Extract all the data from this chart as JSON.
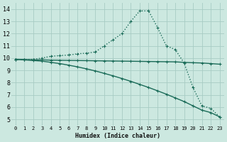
{
  "xlabel": "Humidex (Indice chaleur)",
  "bg_color": "#cce8e0",
  "grid_color": "#a8ccc4",
  "line_color": "#1a6b58",
  "xlim": [
    -0.5,
    23.5
  ],
  "ylim": [
    4.5,
    14.5
  ],
  "xticks": [
    0,
    1,
    2,
    3,
    4,
    5,
    6,
    7,
    8,
    9,
    10,
    11,
    12,
    13,
    14,
    15,
    16,
    17,
    18,
    19,
    20,
    21,
    22,
    23
  ],
  "yticks": [
    5,
    6,
    7,
    8,
    9,
    10,
    11,
    12,
    13,
    14
  ],
  "line1_x": [
    0,
    1,
    2,
    3,
    4,
    5,
    6,
    7,
    8,
    9,
    10,
    11,
    12,
    13,
    14,
    15,
    16,
    17,
    18,
    19,
    20,
    21,
    22,
    23
  ],
  "line1_y": [
    9.9,
    9.85,
    9.9,
    10.0,
    10.15,
    10.2,
    10.25,
    10.35,
    10.4,
    10.5,
    11.0,
    11.5,
    12.0,
    13.0,
    13.85,
    13.85,
    12.5,
    11.0,
    10.7,
    9.6,
    7.6,
    6.1,
    5.9,
    5.2
  ],
  "line2_x": [
    0,
    1,
    2,
    3,
    4,
    5,
    6,
    7,
    8,
    9,
    10,
    11,
    12,
    13,
    14,
    15,
    16,
    17,
    18,
    19,
    20,
    21,
    22,
    23
  ],
  "line2_y": [
    9.9,
    9.88,
    9.86,
    9.85,
    9.83,
    9.82,
    9.81,
    9.8,
    9.79,
    9.78,
    9.77,
    9.76,
    9.75,
    9.74,
    9.73,
    9.72,
    9.71,
    9.7,
    9.69,
    9.65,
    9.62,
    9.6,
    9.55,
    9.5
  ],
  "line3_x": [
    0,
    1,
    2,
    3,
    4,
    5,
    6,
    7,
    8,
    9,
    10,
    11,
    12,
    13,
    14,
    15,
    16,
    17,
    18,
    19,
    20,
    21,
    22,
    23
  ],
  "line3_y": [
    9.9,
    9.85,
    9.8,
    9.75,
    9.65,
    9.55,
    9.42,
    9.28,
    9.12,
    8.95,
    8.75,
    8.55,
    8.33,
    8.1,
    7.85,
    7.6,
    7.33,
    7.05,
    6.75,
    6.45,
    6.1,
    5.75,
    5.55,
    5.2
  ]
}
